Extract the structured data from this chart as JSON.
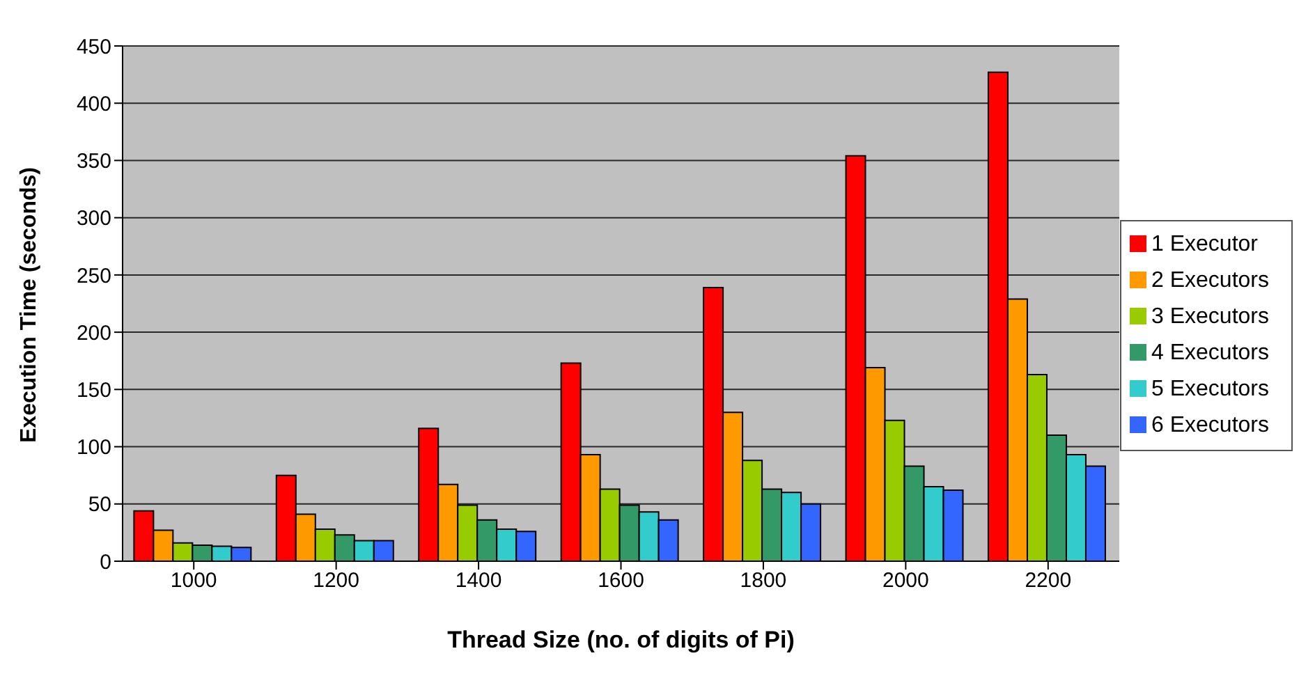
{
  "chart_data": {
    "type": "bar",
    "xlabel": "Thread Size (no. of digits of Pi)",
    "ylabel": "Execution Time (seconds)",
    "categories": [
      "1000",
      "1200",
      "1400",
      "1600",
      "1800",
      "2000",
      "2200"
    ],
    "series": [
      {
        "name": "1 Executor",
        "color": "#ff0000",
        "values": [
          44,
          75,
          116,
          173,
          239,
          354,
          427
        ]
      },
      {
        "name": "2 Executors",
        "color": "#ff9900",
        "values": [
          27,
          41,
          67,
          93,
          130,
          169,
          229
        ]
      },
      {
        "name": "3 Executors",
        "color": "#99cc00",
        "values": [
          16,
          28,
          49,
          63,
          88,
          123,
          163
        ]
      },
      {
        "name": "4 Executors",
        "color": "#339966",
        "values": [
          14,
          23,
          36,
          49,
          63,
          83,
          110
        ]
      },
      {
        "name": "5 Executors",
        "color": "#33cccc",
        "values": [
          13,
          18,
          28,
          43,
          60,
          65,
          93
        ]
      },
      {
        "name": "6 Executors",
        "color": "#3366ff",
        "values": [
          12,
          18,
          26,
          36,
          50,
          62,
          83
        ]
      }
    ],
    "ylim": [
      0,
      450
    ],
    "yticks": [
      0,
      50,
      100,
      150,
      200,
      250,
      300,
      350,
      400,
      450
    ],
    "grid": "y",
    "legend": "right"
  }
}
